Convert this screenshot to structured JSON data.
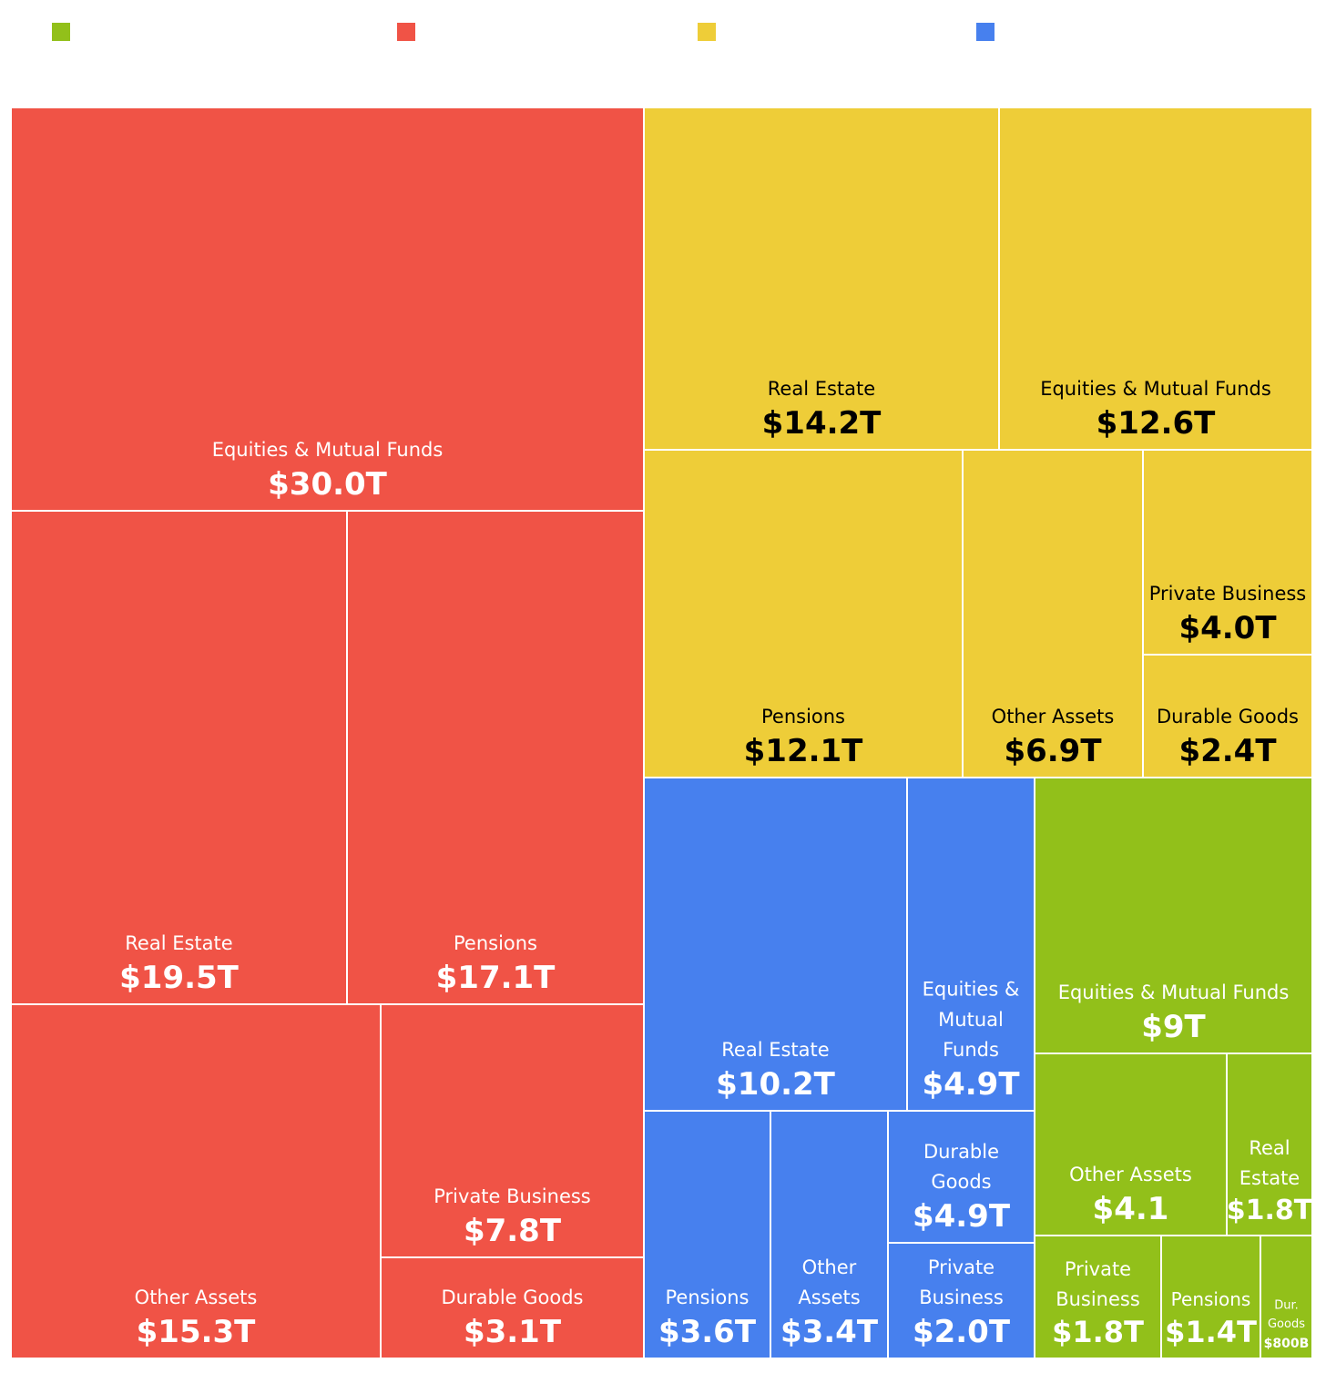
{
  "colors": {
    "green": "#92c01a",
    "red": "#f05346",
    "yellow": "#eecd38",
    "blue": "#4780ee"
  },
  "legend": [
    {
      "color": "#92c01a",
      "label": ""
    },
    {
      "color": "#f05346",
      "label": ""
    },
    {
      "color": "#eecd38",
      "label": ""
    },
    {
      "color": "#4780ee",
      "label": ""
    }
  ],
  "chart_data": {
    "type": "treemap",
    "title": "",
    "groups": [
      {
        "color": "#f05346",
        "text_color": "#ffffff",
        "items": [
          {
            "label": "Equities & Mutual Funds",
            "value": 30.0,
            "display": "$30.0T"
          },
          {
            "label": "Real Estate",
            "value": 19.5,
            "display": "$19.5T"
          },
          {
            "label": "Pensions",
            "value": 17.1,
            "display": "$17.1T"
          },
          {
            "label": "Other Assets",
            "value": 15.3,
            "display": "$15.3T"
          },
          {
            "label": "Private Business",
            "value": 7.8,
            "display": "$7.8T"
          },
          {
            "label": "Durable Goods",
            "value": 3.1,
            "display": "$3.1T"
          }
        ]
      },
      {
        "color": "#eecd38",
        "text_color": "#000000",
        "items": [
          {
            "label": "Real Estate",
            "value": 14.2,
            "display": "$14.2T"
          },
          {
            "label": "Equities & Mutual Funds",
            "value": 12.6,
            "display": "$12.6T"
          },
          {
            "label": "Pensions",
            "value": 12.1,
            "display": "$12.1T"
          },
          {
            "label": "Other Assets",
            "value": 6.9,
            "display": "$6.9T"
          },
          {
            "label": "Private Business",
            "value": 4.0,
            "display": "$4.0T"
          },
          {
            "label": "Durable Goods",
            "value": 2.4,
            "display": "$2.4T"
          }
        ]
      },
      {
        "color": "#4780ee",
        "text_color": "#ffffff",
        "items": [
          {
            "label": "Real Estate",
            "value": 10.2,
            "display": "$10.2T"
          },
          {
            "label": "Equities & Mutual Funds",
            "value": 4.9,
            "display": "$4.9T"
          },
          {
            "label": "Pensions",
            "value": 3.6,
            "display": "$3.6T"
          },
          {
            "label": "Other Assets",
            "value": 3.4,
            "display": "$3.4T"
          },
          {
            "label": "Durable Goods",
            "value": 4.9,
            "display": "$4.9T"
          },
          {
            "label": "Private Business",
            "value": 2.0,
            "display": "$2.0T"
          }
        ]
      },
      {
        "color": "#92c01a",
        "text_color": "#ffffff",
        "items": [
          {
            "label": "Equities & Mutual Funds",
            "value": 9,
            "display": "$9T"
          },
          {
            "label": "Other Assets",
            "value": 4.1,
            "display": "$4.1"
          },
          {
            "label": "Real Estate",
            "value": 1.8,
            "display": "$1.8T"
          },
          {
            "label": "Private Business",
            "value": 1.8,
            "display": "$1.8T"
          },
          {
            "label": "Pensions",
            "value": 1.4,
            "display": "$1.4T"
          },
          {
            "label": "Dur. Goods",
            "value": 0.8,
            "display": "$800B"
          }
        ]
      }
    ]
  }
}
